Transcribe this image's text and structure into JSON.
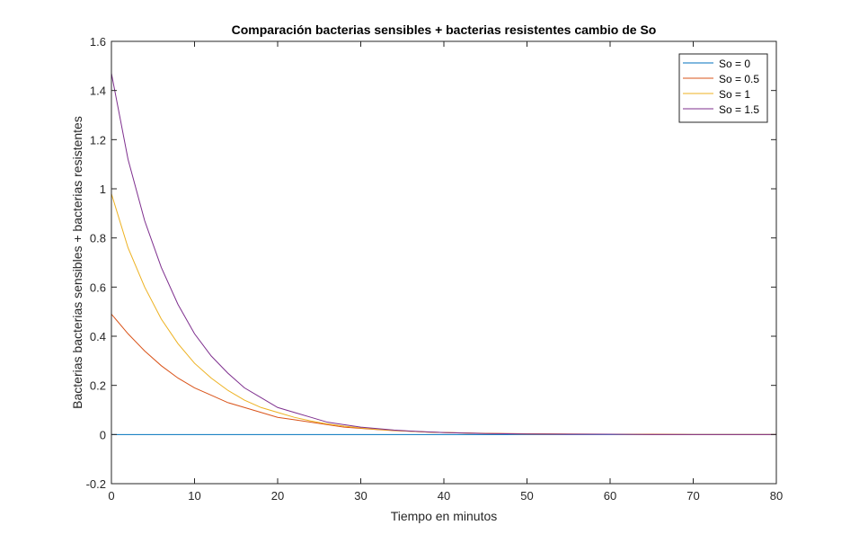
{
  "chart_data": {
    "type": "line",
    "title": "Comparación bacterias sensibles + bacterias resistentes cambio de So",
    "xlabel": "Tiempo en minutos",
    "ylabel": "Bacterias bacterias sensibles + bacterias resistentes",
    "xlim": [
      0,
      80
    ],
    "ylim": [
      -0.2,
      1.6
    ],
    "xticks": [
      0,
      10,
      20,
      30,
      40,
      50,
      60,
      70,
      80
    ],
    "yticks": [
      -0.2,
      0,
      0.2,
      0.4,
      0.6,
      0.8,
      1,
      1.2,
      1.4,
      1.6
    ],
    "xtick_labels": [
      "0",
      "10",
      "20",
      "30",
      "40",
      "50",
      "60",
      "70",
      "80"
    ],
    "ytick_labels": [
      "-0.2",
      "0",
      "0.2",
      "0.4",
      "0.6",
      "0.8",
      "1",
      "1.2",
      "1.4",
      "1.6"
    ],
    "grid": false,
    "legend_position": "top-right",
    "x": [
      0,
      2,
      4,
      6,
      8,
      10,
      12,
      14,
      16,
      18,
      20,
      22,
      24,
      26,
      28,
      30,
      32,
      34,
      36,
      38,
      40,
      45,
      50,
      55,
      60,
      65,
      70,
      75,
      80
    ],
    "series": [
      {
        "name": "So = 0",
        "color": "#0072BD",
        "values": [
          0,
          0,
          0,
          0,
          0,
          0,
          0,
          0,
          0,
          0,
          0,
          0,
          0,
          0,
          0,
          0,
          0,
          0,
          0,
          0,
          0,
          0,
          0,
          0,
          0,
          0,
          0,
          0,
          0
        ]
      },
      {
        "name": "So = 0.5",
        "color": "#D95319",
        "values": [
          0.49,
          0.41,
          0.34,
          0.28,
          0.23,
          0.19,
          0.16,
          0.13,
          0.11,
          0.09,
          0.07,
          0.06,
          0.05,
          0.04,
          0.03,
          0.025,
          0.02,
          0.016,
          0.013,
          0.01,
          0.008,
          0.005,
          0.003,
          0.002,
          0.001,
          0.001,
          0,
          0,
          0
        ]
      },
      {
        "name": "So = 1",
        "color": "#EDB120",
        "values": [
          0.98,
          0.76,
          0.6,
          0.47,
          0.37,
          0.29,
          0.23,
          0.18,
          0.14,
          0.11,
          0.09,
          0.07,
          0.055,
          0.043,
          0.034,
          0.027,
          0.021,
          0.017,
          0.013,
          0.01,
          0.008,
          0.004,
          0.002,
          0.001,
          0.001,
          0,
          0,
          0,
          0
        ]
      },
      {
        "name": "So = 1.5",
        "color": "#7E2F8E",
        "values": [
          1.47,
          1.12,
          0.87,
          0.68,
          0.53,
          0.41,
          0.32,
          0.25,
          0.19,
          0.15,
          0.11,
          0.09,
          0.07,
          0.05,
          0.04,
          0.03,
          0.024,
          0.018,
          0.014,
          0.011,
          0.008,
          0.004,
          0.002,
          0.001,
          0.001,
          0,
          0,
          0,
          0
        ]
      }
    ]
  }
}
